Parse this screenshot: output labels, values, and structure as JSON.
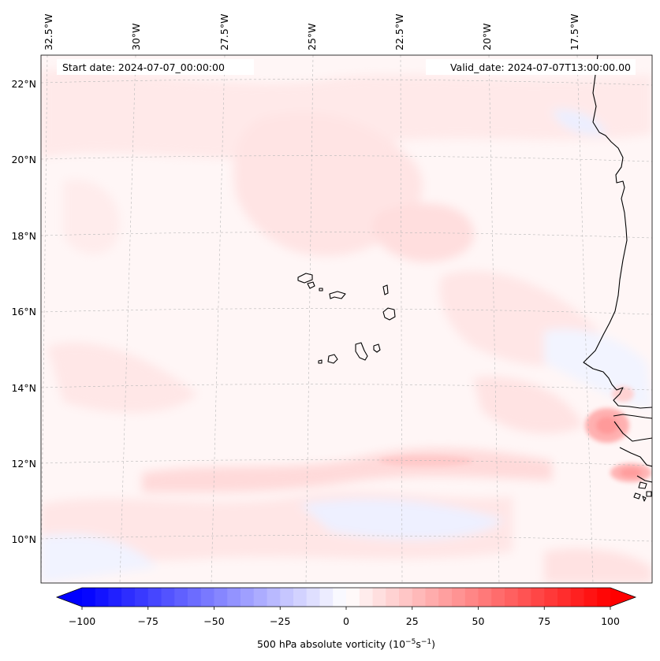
{
  "header": {
    "start_date": "Start date: 2024-07-07_00:00:00",
    "valid_date": "Valid_date: 2024-07-07T13:00:00.00"
  },
  "map": {
    "lon_labels": [
      "32.5°W",
      "30°W",
      "27.5°W",
      "25°W",
      "22.5°W",
      "20°W",
      "17.5°W"
    ],
    "lat_labels": [
      "22°N",
      "20°N",
      "18°N",
      "16°N",
      "14°N",
      "12°N",
      "10°N"
    ],
    "colors": {
      "coast": "#000000",
      "gridline": "#b8b8b8",
      "weak_positive": "#ffe8e8",
      "moderate_positive": "#ffc9c9",
      "strong_positive": "#ff9a9a",
      "weak_negative": "#eef0ff"
    }
  },
  "colorbar": {
    "ticks": [
      "−100",
      "−75",
      "−50",
      "−25",
      "0",
      "25",
      "50",
      "75",
      "100"
    ],
    "label": "500 hPa absolute vorticity (10",
    "label_exp1": "−5",
    "label_mid": "s",
    "label_exp2": "−1",
    "label_end": ")",
    "min_color": "#0000ff",
    "mid_color": "#ffffff",
    "max_color": "#ff0000"
  }
}
